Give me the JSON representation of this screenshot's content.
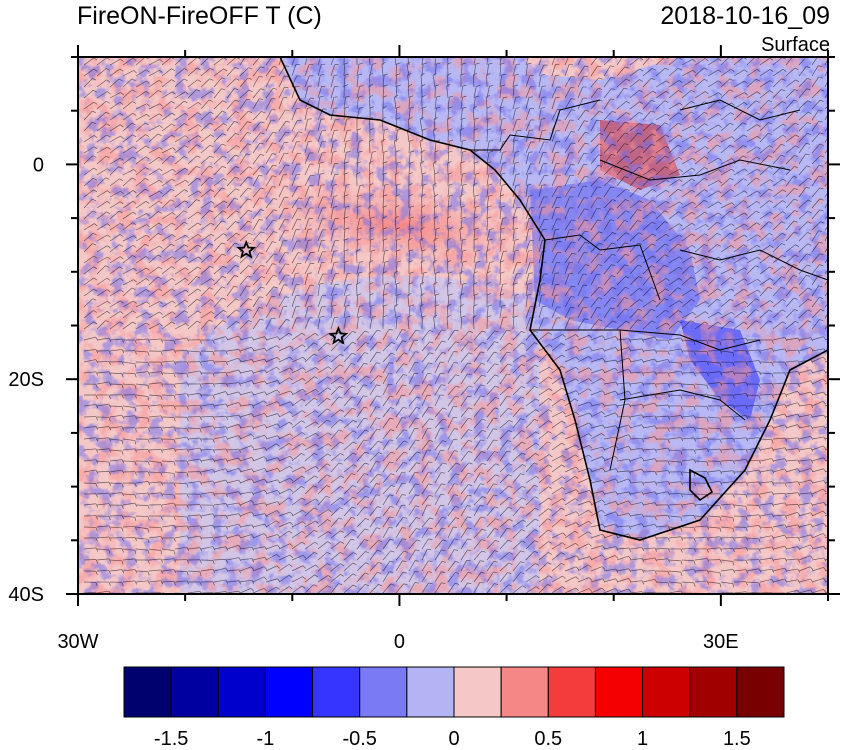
{
  "title_left": "FireON-FireOFF T (C)",
  "title_right": "2018-10-16_09",
  "subtitle": "Surface",
  "axes": {
    "lon_range": [
      -30,
      40
    ],
    "lat_range": [
      -40,
      10
    ],
    "x_ticks": [
      {
        "value": -30,
        "label": "30W"
      },
      {
        "value": 0,
        "label": "0"
      },
      {
        "value": 30,
        "label": "30E"
      }
    ],
    "y_ticks": [
      {
        "value": 0,
        "label": "0"
      },
      {
        "value": -20,
        "label": "20S"
      },
      {
        "value": -40,
        "label": "40S"
      }
    ]
  },
  "colorbar": {
    "colors": [
      "#00006e",
      "#0000a0",
      "#0000cd",
      "#0000ff",
      "#3535ff",
      "#7a7af5",
      "#b4b4f5",
      "#f5c8c8",
      "#f58787",
      "#f53c3c",
      "#f50000",
      "#cd0000",
      "#a00000",
      "#780000"
    ],
    "tick_labels": [
      "-1.5",
      "-1",
      "-0.5",
      "0",
      "0.5",
      "1",
      "1.5"
    ]
  },
  "markers": [
    {
      "name": "star-1",
      "lon": -14.3,
      "lat": -8
    },
    {
      "name": "star-2",
      "lon": -5.7,
      "lat": -16
    }
  ]
}
